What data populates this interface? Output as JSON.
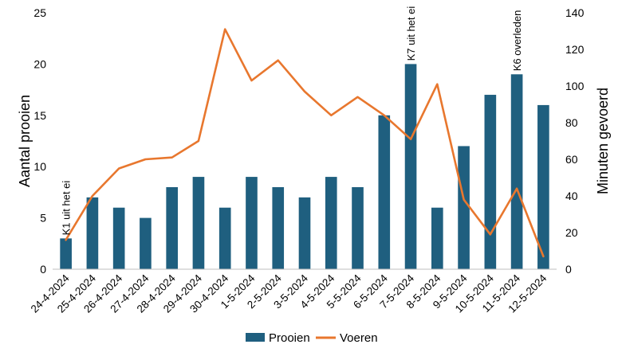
{
  "chart_data": {
    "type": "bar+line",
    "categories": [
      "24-4-2024",
      "25-4-2024",
      "26-4-2024",
      "27-4-2024",
      "28-4-2024",
      "29-4-2024",
      "30-4-2024",
      "1-5-2024",
      "2-5-2024",
      "3-5-2024",
      "4-5-2024",
      "5-5-2024",
      "6-5-2024",
      "7-5-2024",
      "8-5-2024",
      "9-5-2024",
      "10-5-2024",
      "11-5-2024",
      "12-5-2024"
    ],
    "series": [
      {
        "name": "Prooien",
        "type": "bar",
        "axis": "left",
        "color": "#1f5f7f",
        "values": [
          3,
          7,
          6,
          5,
          8,
          9,
          6,
          9,
          8,
          7,
          9,
          8,
          15,
          20,
          6,
          12,
          17,
          19,
          16
        ]
      },
      {
        "name": "Voeren",
        "type": "line",
        "axis": "right",
        "color": "#e8772e",
        "values": [
          16,
          40,
          55,
          60,
          61,
          70,
          131,
          103,
          114,
          97,
          84,
          94,
          84,
          71,
          101,
          38,
          19,
          44,
          7
        ]
      }
    ],
    "ylabel_left": "Aantal prooien",
    "ylabel_right": "Minuten gevoerd",
    "ylim_left": [
      0,
      25
    ],
    "ylim_right": [
      0,
      140
    ],
    "yticks_left": [
      0,
      5,
      10,
      15,
      20,
      25
    ],
    "yticks_right": [
      0,
      20,
      40,
      60,
      80,
      100,
      120,
      140
    ],
    "grid": false,
    "legend": "bottom-center",
    "annotations": [
      {
        "category": "24-4-2024",
        "text": "K1 uit het ei"
      },
      {
        "category": "7-5-2024",
        "text": "K7 uit het ei"
      },
      {
        "category": "11-5-2024",
        "text": "K6 overleden"
      }
    ]
  }
}
